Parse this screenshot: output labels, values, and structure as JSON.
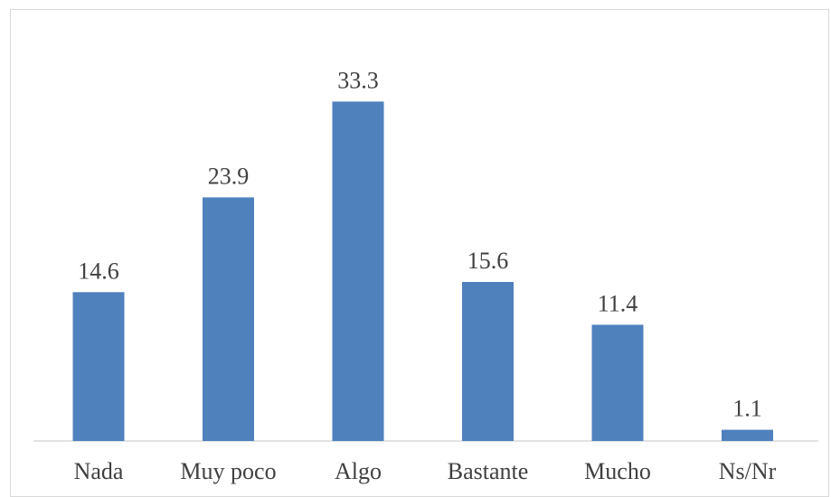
{
  "chart_data": {
    "type": "bar",
    "categories": [
      "Nada",
      "Muy poco",
      "Algo",
      "Bastante",
      "Mucho",
      "Ns/Nr"
    ],
    "values": [
      14.6,
      23.9,
      33.3,
      15.6,
      11.4,
      1.1
    ],
    "value_labels": [
      "14.6",
      "23.9",
      "33.3",
      "15.6",
      "11.4",
      "1.1"
    ],
    "title": "",
    "xlabel": "",
    "ylabel": "",
    "ylim": [
      0,
      35
    ],
    "grid": false,
    "legend": "none",
    "bar_color": "#4f81bd",
    "axis_color": "#d9d9d9"
  }
}
